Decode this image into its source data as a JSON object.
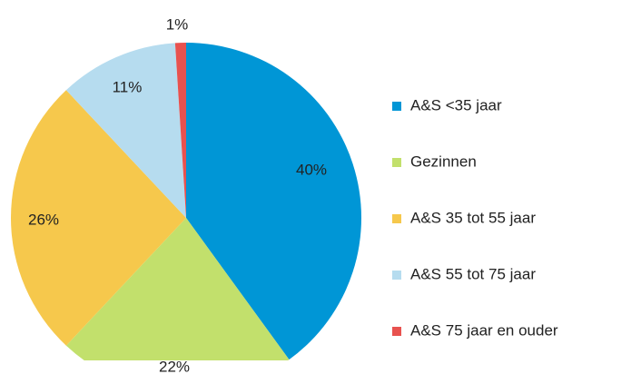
{
  "chart_data": {
    "type": "pie",
    "categories": [
      "A&S <35 jaar",
      "Gezinnen",
      "A&S 35 tot 55 jaar",
      "A&S 55 tot 75 jaar",
      "A&S 75 jaar en ouder"
    ],
    "values": [
      40,
      22,
      26,
      11,
      1
    ],
    "value_labels": [
      "40%",
      "22%",
      "26%",
      "11%",
      "1%"
    ],
    "colors": [
      "#0096d6",
      "#c2e06c",
      "#f6c84c",
      "#b6dcef",
      "#e8524f"
    ],
    "legend": "right"
  }
}
